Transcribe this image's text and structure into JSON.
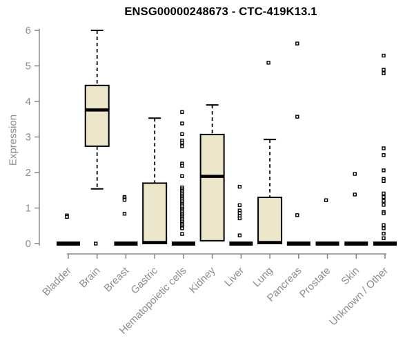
{
  "chart_data": {
    "type": "box",
    "title": "ENSG00000248673 - CTC-419K13.1",
    "ylabel": "Expression",
    "xlabel": "",
    "ylim": [
      0,
      6
    ],
    "yticks": [
      0,
      1,
      2,
      3,
      4,
      5,
      6
    ],
    "grid": false,
    "legend": "none",
    "colors": {
      "box_fill": "#ece7cb",
      "box_stroke": "#000000",
      "median": "#000000",
      "axis": "#878787",
      "tick_text": "#8c8c8c",
      "title": "#000000",
      "outlier_fill": "#ffffff"
    },
    "categories": [
      {
        "name": "Bladder",
        "collapsed": true,
        "q1": 0,
        "median": 0,
        "q3": 0,
        "whisker_low": 0,
        "whisker_high": 0,
        "outliers": [
          0.79,
          0.75
        ]
      },
      {
        "name": "Brain",
        "collapsed": false,
        "q1": 2.74,
        "median": 3.76,
        "q3": 4.45,
        "whisker_low": 1.54,
        "whisker_high": 6.0,
        "outliers": [
          0.0
        ]
      },
      {
        "name": "Breast",
        "collapsed": true,
        "q1": 0,
        "median": 0,
        "q3": 0,
        "whisker_low": 0,
        "whisker_high": 0,
        "outliers": [
          1.31,
          1.27,
          1.23,
          0.84
        ]
      },
      {
        "name": "Gastric",
        "collapsed": false,
        "q1": 0,
        "median": 0.03,
        "q3": 1.7,
        "whisker_low": 0,
        "whisker_high": 3.53,
        "outliers": []
      },
      {
        "name": "Hematopoietic cells",
        "collapsed": true,
        "q1": 0,
        "median": 0,
        "q3": 0,
        "whisker_low": 0,
        "whisker_high": 0,
        "outliers": [
          3.7,
          3.38,
          3.08,
          2.9,
          2.84,
          2.74,
          2.25,
          2.19,
          1.9,
          1.58,
          1.53,
          1.49,
          1.44,
          1.39,
          1.35,
          1.3,
          1.25,
          1.21,
          1.16,
          1.11,
          1.07,
          1.02,
          0.97,
          0.93,
          0.88,
          0.83,
          0.79,
          0.74,
          0.69,
          0.65,
          0.6,
          0.55,
          0.51,
          0.46,
          0.43,
          0.27
        ]
      },
      {
        "name": "Kidney",
        "collapsed": false,
        "q1": 0.08,
        "median": 1.89,
        "q3": 3.07,
        "whisker_low": 0.08,
        "whisker_high": 3.9,
        "outliers": []
      },
      {
        "name": "Liver",
        "collapsed": true,
        "q1": 0,
        "median": 0,
        "q3": 0,
        "whisker_low": 0,
        "whisker_high": 0,
        "outliers": [
          1.6,
          1.08,
          0.93,
          0.86,
          0.78,
          0.71,
          0.23
        ]
      },
      {
        "name": "Lung",
        "collapsed": false,
        "q1": 0,
        "median": 0.03,
        "q3": 1.3,
        "whisker_low": 0,
        "whisker_high": 2.93,
        "outliers": [
          5.09
        ]
      },
      {
        "name": "Pancreas",
        "collapsed": true,
        "q1": 0,
        "median": 0,
        "q3": 0,
        "whisker_low": 0,
        "whisker_high": 0,
        "outliers": [
          5.63,
          3.57,
          0.8
        ]
      },
      {
        "name": "Prostate",
        "collapsed": true,
        "q1": 0,
        "median": 0,
        "q3": 0,
        "whisker_low": 0,
        "whisker_high": 0,
        "outliers": [
          1.22
        ]
      },
      {
        "name": "Skin",
        "collapsed": true,
        "q1": 0,
        "median": 0,
        "q3": 0,
        "whisker_low": 0,
        "whisker_high": 0,
        "outliers": [
          1.96,
          1.38
        ]
      },
      {
        "name": "Unknown / Other",
        "collapsed": true,
        "q1": 0,
        "median": 0,
        "q3": 0,
        "whisker_low": 0,
        "whisker_high": 0,
        "outliers": [
          5.29,
          4.89,
          4.79,
          2.68,
          2.49,
          2.06,
          1.82,
          1.76,
          1.41,
          1.31,
          1.2,
          1.09,
          0.89,
          0.85,
          0.52,
          0.43,
          0.28,
          0.15
        ]
      }
    ]
  }
}
